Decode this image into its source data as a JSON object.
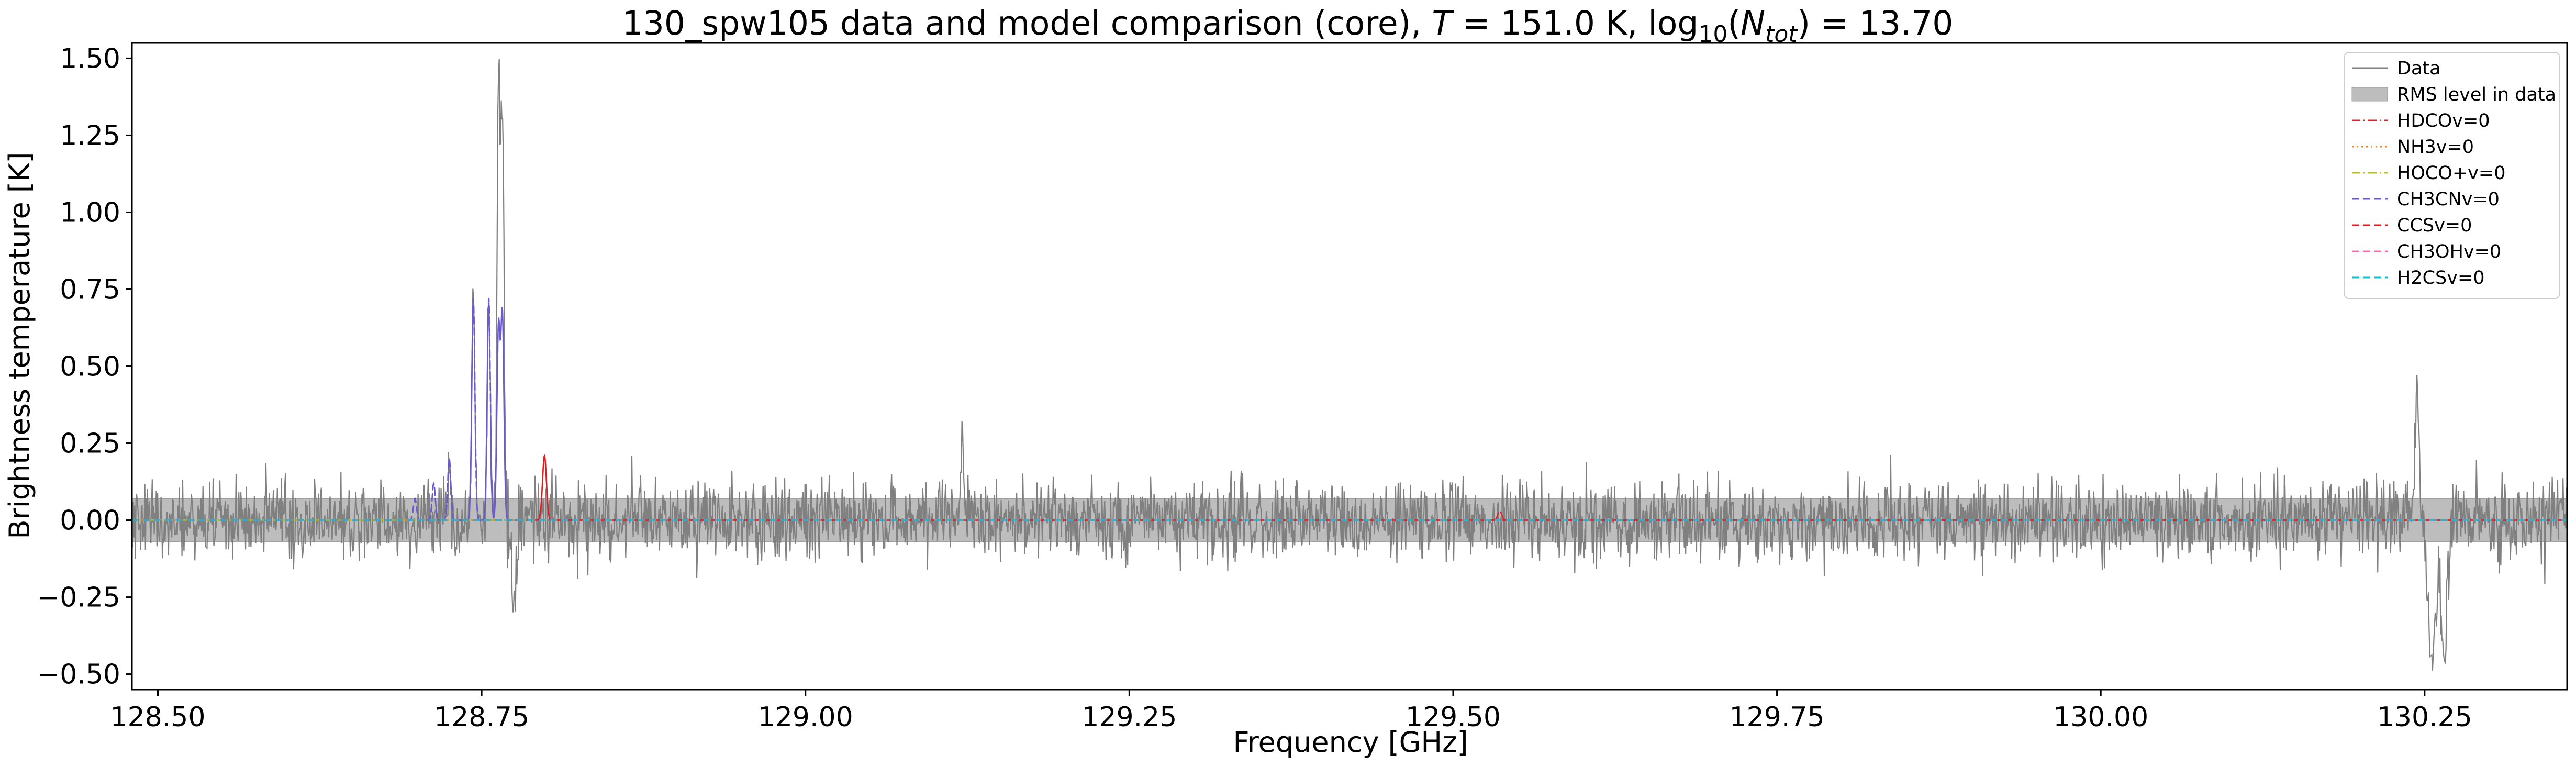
{
  "chart_data": {
    "type": "line",
    "title": {
      "prefix": "130_spw105 data and model comparison (core), ",
      "t_var": "T",
      "t_value": " = 151.0 K, log",
      "log_base": "10",
      "n_open": "(",
      "n_var": "N",
      "n_sub": "tot",
      "n_rest": ") = 13.70"
    },
    "xlabel": "Frequency [GHz]",
    "ylabel": "Brightness temperature [K]",
    "xlim": [
      128.48,
      130.36
    ],
    "ylim": [
      -0.55,
      1.55
    ],
    "xticks": [
      128.5,
      128.75,
      129.0,
      129.25,
      129.5,
      129.75,
      130.0,
      130.25
    ],
    "xtick_labels": [
      "128.50",
      "128.75",
      "129.00",
      "129.25",
      "129.50",
      "129.75",
      "130.00",
      "130.25"
    ],
    "yticks": [
      -0.5,
      -0.25,
      0.0,
      0.25,
      0.5,
      0.75,
      1.0,
      1.25,
      1.5
    ],
    "ytick_labels": [
      "−0.50",
      "−0.25",
      "0.00",
      "0.25",
      "0.50",
      "0.75",
      "1.00",
      "1.25",
      "1.50"
    ],
    "rms_band": [
      -0.07,
      0.07
    ],
    "noise_sigma": 0.065,
    "data_features": [
      {
        "center": 128.7436,
        "amplitude": 0.72,
        "width": 0.0012
      },
      {
        "center": 128.7555,
        "amplitude": 0.72,
        "width": 0.0012
      },
      {
        "center": 128.763,
        "amplitude": 1.44,
        "width": 0.0012
      },
      {
        "center": 128.766,
        "amplitude": 1.36,
        "width": 0.0012
      },
      {
        "center": 128.725,
        "amplitude": 0.2,
        "width": 0.0012
      },
      {
        "center": 129.121,
        "amplitude": 0.28,
        "width": 0.0012
      },
      {
        "center": 128.775,
        "amplitude": -0.24,
        "width": 0.002
      },
      {
        "center": 130.244,
        "amplitude": 0.46,
        "width": 0.0015
      },
      {
        "center": 130.256,
        "amplitude": -0.46,
        "width": 0.003
      },
      {
        "center": 130.265,
        "amplitude": -0.46,
        "width": 0.002
      }
    ],
    "series": [
      {
        "name": "Data",
        "color": "#808080",
        "dash": "solid",
        "lines": []
      },
      {
        "name": "HDCOv=0",
        "color": "#d62728",
        "dash": "dashdot",
        "lines": [
          {
            "center": 129.536,
            "amplitude": 0.03,
            "width": 0.0015
          }
        ]
      },
      {
        "name": "NH3v=0",
        "color": "#ff7f0e",
        "dash": "dotted",
        "lines": []
      },
      {
        "name": "HOCO+v=0",
        "color": "#bcbd22",
        "dash": "dashdot",
        "lines": []
      },
      {
        "name": "CH3CNv=0",
        "color": "#6a5acd",
        "dash": "dashed",
        "lines": [
          {
            "center": 128.6985,
            "amplitude": 0.07,
            "width": 0.0012
          },
          {
            "center": 128.713,
            "amplitude": 0.12,
            "width": 0.0012
          },
          {
            "center": 128.725,
            "amplitude": 0.2,
            "width": 0.0012
          },
          {
            "center": 128.7436,
            "amplitude": 0.72,
            "width": 0.0012
          },
          {
            "center": 128.7555,
            "amplitude": 0.72,
            "width": 0.0012
          },
          {
            "center": 128.763,
            "amplitude": 0.62,
            "width": 0.0012
          },
          {
            "center": 128.766,
            "amplitude": 0.66,
            "width": 0.0012
          }
        ]
      },
      {
        "name": "CCSv=0",
        "color": "#e31a1c",
        "dash": "dashed",
        "lines": [
          {
            "center": 128.7985,
            "amplitude": 0.21,
            "width": 0.0015
          }
        ]
      },
      {
        "name": "CH3OHv=0",
        "color": "#ff69b4",
        "dash": "dashed",
        "lines": []
      },
      {
        "name": "H2CSv=0",
        "color": "#17becf",
        "dash": "dashed",
        "lines": []
      }
    ],
    "rms_legend_label": "RMS level in data",
    "legend_position": "top-right",
    "grid": false
  }
}
